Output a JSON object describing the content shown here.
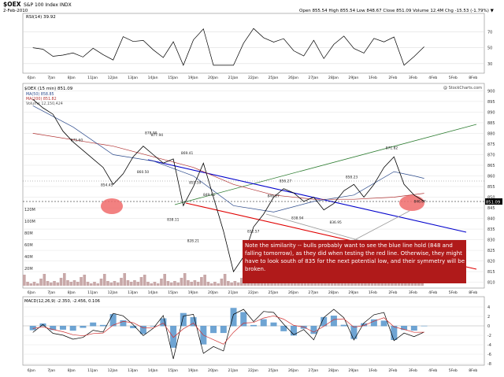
{
  "header": {
    "symbol": "$OEX",
    "name": "S&P 100 Index  INDX",
    "date": "2-Feb-2010",
    "quote": "Open 855.54  High 855.54  Low 848.67  Close 851.09  Volume 12.4M  Chg -15.53 (-1.79%) ▼",
    "watermark": "@ StockCharts.com"
  },
  "colors": {
    "panel_bg": "#ffffff",
    "frame": "#888888",
    "price": "#000000",
    "ma50": "#2b4a8c",
    "ma200": "#b03030",
    "blue_line": "#0000cc",
    "red_line": "#e00000",
    "green_line": "#2e7d32",
    "grey_line": "#999999",
    "note_bg": "#b01a1a",
    "note_text": "#ffffff",
    "ellipse": "#f06b6b",
    "macd_hist": "#4a8dc8",
    "volume": "#c8a8a8"
  },
  "legends": {
    "rsi": "RSI(14) 39.92",
    "price": "$OEX (15 min) 851.09",
    "ma50": "MA(50) 858.85",
    "ma200": "MA(200) 851.82",
    "volume": "Volume 12,150,424",
    "macd_label": "MACD(12,26,9) -2.350, -2.456, 0.106"
  },
  "annotation": "Note the similarity -- bulls probably want to see the blue line hold (848 and falling tomorrow), as they did when testing the red line.  Otherwise, they might have to look south of 835 for the next potential low, and their symmetry will be broken.",
  "chart_data": {
    "type": "line",
    "x_labels": [
      "6Jan",
      "7Jan",
      "8Jan",
      "11Jan",
      "12Jan",
      "13Jan",
      "14Jan",
      "15Jan",
      "19Jan",
      "20Jan",
      "21Jan",
      "22Jan",
      "25Jan",
      "26Jan",
      "27Jan",
      "28Jan",
      "29Jan",
      "1Feb",
      "2Feb",
      "3Feb",
      "4Feb",
      "5Feb",
      "8Feb"
    ],
    "rsi_axis": [
      30,
      50,
      70
    ],
    "price_axis": [
      810,
      815,
      820,
      825,
      830,
      835,
      840,
      845,
      850,
      855,
      860,
      865,
      870,
      875,
      880,
      885,
      890,
      895,
      900
    ],
    "price_ylim": [
      808,
      902
    ],
    "volume_axis_labels": [
      "120M",
      "100M",
      "80M",
      "60M",
      "40M",
      "20M"
    ],
    "macd_axis": [
      -8,
      -6,
      -4,
      -2,
      0,
      2,
      4
    ],
    "current_price_label": "851.09",
    "price_annotations": [
      {
        "x": 2.2,
        "y": 875.6,
        "label": "875.60"
      },
      {
        "x": 3.7,
        "y": 854.45,
        "label": "854.45"
      },
      {
        "x": 5.5,
        "y": 860.5,
        "label": "860.50"
      },
      {
        "x": 5.9,
        "y": 878.9,
        "label": "878.90"
      },
      {
        "x": 6.2,
        "y": 877.94,
        "label": "877.94"
      },
      {
        "x": 7.7,
        "y": 869.41,
        "label": "869.41"
      },
      {
        "x": 8.1,
        "y": 855.59,
        "label": "855.59"
      },
      {
        "x": 8.8,
        "y": 849.91,
        "label": "849.91"
      },
      {
        "x": 7.0,
        "y": 838.11,
        "label": "838.11"
      },
      {
        "x": 8.0,
        "y": 828.21,
        "label": "828.21"
      },
      {
        "x": 11.0,
        "y": 832.57,
        "label": "832.57"
      },
      {
        "x": 12.0,
        "y": 849.27,
        "label": "849.27"
      },
      {
        "x": 12.6,
        "y": 856.27,
        "label": "856.27"
      },
      {
        "x": 13.2,
        "y": 838.94,
        "label": "838.94"
      },
      {
        "x": 15.1,
        "y": 836.95,
        "label": "836.95"
      },
      {
        "x": 15.9,
        "y": 858.23,
        "label": "858.23"
      },
      {
        "x": 17.9,
        "y": 871.82,
        "label": "871.82"
      },
      {
        "x": 19.3,
        "y": 846.67,
        "label": "846.67"
      }
    ],
    "series": [
      {
        "name": "$OEX (15 min)",
        "x": [
          0,
          0.5,
          1,
          1.5,
          2,
          2.5,
          3,
          3.5,
          4,
          4.5,
          5,
          5.5,
          6,
          6.5,
          7,
          7.5,
          8,
          8.5,
          9,
          9.5,
          10,
          10.5,
          11,
          11.5,
          12,
          12.5,
          13,
          13.5,
          14,
          14.5,
          15,
          15.5,
          16,
          16.5,
          17,
          17.5,
          18,
          18.5,
          19,
          19.5
        ],
        "y": [
          896,
          892,
          889,
          881,
          876,
          872,
          868,
          864,
          856,
          861,
          869,
          874,
          870,
          866,
          868,
          846,
          855,
          866,
          850,
          834,
          815,
          822,
          836,
          842,
          850,
          854,
          852,
          848,
          850,
          844,
          847,
          853,
          856,
          850,
          856,
          864,
          869,
          856,
          851,
          848
        ]
      },
      {
        "name": "MA(50)",
        "x": [
          0,
          2,
          4,
          6,
          8,
          10,
          12,
          14,
          16,
          18,
          19,
          19.5
        ],
        "y": [
          893,
          883,
          870,
          867,
          860,
          846,
          843,
          848,
          851,
          862,
          860,
          858.85
        ]
      },
      {
        "name": "MA(200)",
        "x": [
          0,
          4,
          8,
          10,
          12,
          14,
          16,
          18,
          19.5
        ],
        "y": [
          880,
          874,
          864,
          856,
          851,
          849,
          849,
          850,
          851.82
        ]
      }
    ]
  }
}
